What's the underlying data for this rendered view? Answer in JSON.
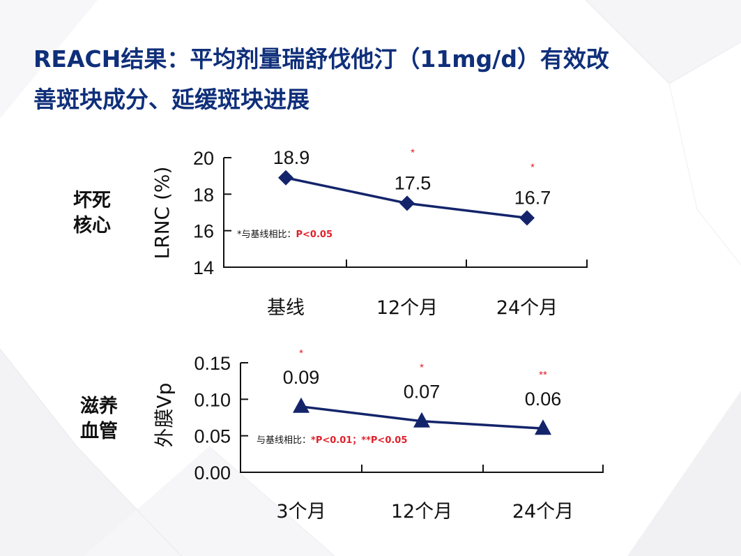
{
  "slide": {
    "title_line1": "REACH结果：平均剂量瑞舒伐他汀（11mg/d）有效改",
    "title_line2": "善斑块成分、延缓斑块进展"
  },
  "labels": {
    "row1": [
      "坏死",
      "核心"
    ],
    "row2": [
      "滋养",
      "血管"
    ]
  },
  "colors": {
    "title": "#0f2f7a",
    "series": "#14246b",
    "significance": "#e0202a",
    "axis": "#111111"
  },
  "chart_data": [
    {
      "type": "line",
      "ylabel": "LRNC (%)",
      "categories": [
        "基线",
        "12个月",
        "24个月"
      ],
      "values": [
        18.9,
        17.5,
        16.7
      ],
      "data_labels": [
        "18.9",
        "17.5",
        "16.7"
      ],
      "significance": [
        "",
        "*",
        "*"
      ],
      "ylim": [
        14,
        20
      ],
      "yticks": [
        "14",
        "16",
        "18",
        "20"
      ],
      "marker": "diamond",
      "grid": false,
      "annotation": {
        "prefix": "*与基线相比：",
        "highlight": "P<0.05"
      }
    },
    {
      "type": "line",
      "ylabel": "外膜Vp",
      "categories": [
        "3个月",
        "12个月",
        "24个月"
      ],
      "values": [
        0.09,
        0.07,
        0.06
      ],
      "data_labels": [
        "0.09",
        "0.07",
        "0.06"
      ],
      "significance": [
        "*",
        "*",
        "**"
      ],
      "ylim": [
        0,
        0.15
      ],
      "yticks": [
        "0.00",
        "0.05",
        "0.10",
        "0.15"
      ],
      "marker": "triangle",
      "grid": false,
      "annotation": {
        "prefix": "与基线相比：",
        "highlight": "*P<0.01；**P<0.05"
      }
    }
  ]
}
